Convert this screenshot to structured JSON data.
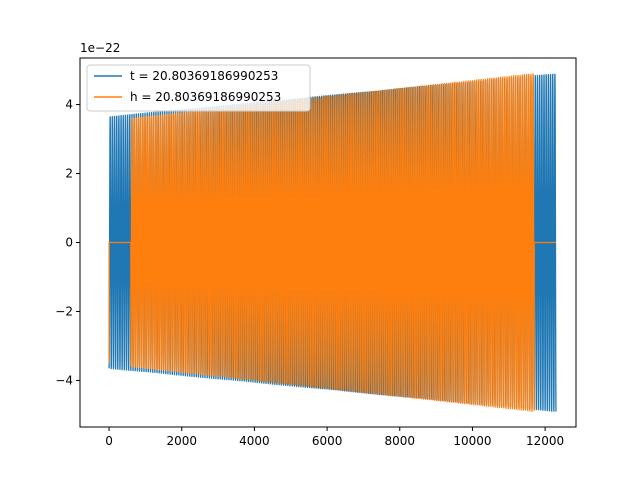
{
  "chart_data": {
    "type": "line",
    "title": "",
    "xlabel": "",
    "ylabel": "",
    "y_offset_label": "1e−22",
    "xlim": [
      -800,
      12850
    ],
    "ylim": [
      -5.35,
      5.35
    ],
    "x_ticks": [
      0,
      2000,
      4000,
      6000,
      8000,
      10000,
      12000
    ],
    "x_tick_labels": [
      "0",
      "2000",
      "4000",
      "6000",
      "8000",
      "10000",
      "12000"
    ],
    "y_ticks": [
      -4,
      -2,
      0,
      2,
      4
    ],
    "y_tick_labels": [
      "−4",
      "−2",
      "0",
      "2",
      "4"
    ],
    "grid": false,
    "legend_position": "top-left",
    "series": [
      {
        "name": "t = 20.80369186990253",
        "color": "#1f77b4",
        "x_start": 0,
        "x_end": 12300,
        "active_start": 0,
        "active_end": 12300,
        "amp_start": 3.65,
        "amp_end": 4.9,
        "cycles": 205,
        "initial_value": -1.4
      },
      {
        "name": "h = 20.80369186990253",
        "color": "#ff7f0e",
        "x_start": 0,
        "x_end": 12300,
        "active_start": 600,
        "active_end": 11700,
        "amp_start": 3.6,
        "amp_end": 4.9,
        "cycles": 186,
        "initial_value": -3.5
      }
    ]
  }
}
